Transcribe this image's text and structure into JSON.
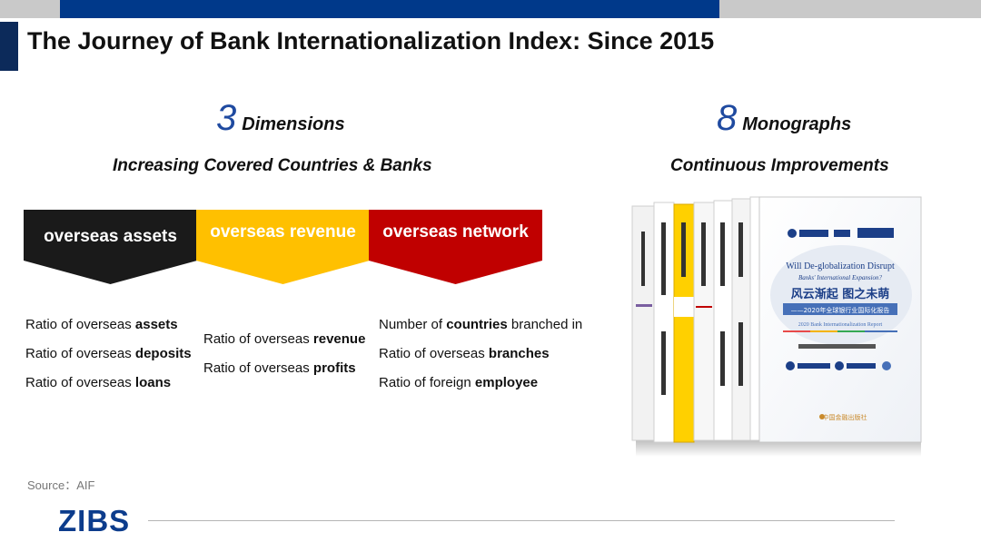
{
  "title": "The Journey of Bank Internationalization Index: Since 2015",
  "left": {
    "count": "3",
    "count_label": "Dimensions",
    "subtitle": "Increasing Covered Countries & Banks",
    "dimensions": [
      {
        "label": "overseas assets",
        "color": "#1a1a1a",
        "metrics": [
          {
            "pre": "Ratio of overseas ",
            "bold": "assets",
            "post": ""
          },
          {
            "pre": "Ratio of overseas ",
            "bold": "deposits",
            "post": ""
          },
          {
            "pre": "Ratio of overseas ",
            "bold": "loans",
            "post": ""
          }
        ]
      },
      {
        "label": "overseas revenue",
        "color": "#ffc000",
        "metrics": [
          {
            "pre": "Ratio of overseas ",
            "bold": "revenue",
            "post": ""
          },
          {
            "pre": "Ratio of overseas ",
            "bold": "profits",
            "post": ""
          }
        ]
      },
      {
        "label": "overseas network",
        "color": "#c00000",
        "metrics": [
          {
            "pre": "Number of ",
            "bold": "countries",
            "post": " branched in"
          },
          {
            "pre": "Ratio of overseas ",
            "bold": "branches",
            "post": ""
          },
          {
            "pre": "Ratio of foreign ",
            "bold": "employee",
            "post": ""
          }
        ]
      }
    ]
  },
  "right": {
    "count": "8",
    "count_label": "Monographs",
    "subtitle": "Continuous Improvements",
    "cover": {
      "title_en": "Will De-globalization Disrupt",
      "subtitle_en": "Banks' International Expansion?",
      "title_cn": "风云渐起  图之未萌",
      "subtitle_cn": "——2020年全球银行业国际化报告",
      "report_en": "2020 Bank Internationalization Report",
      "publisher_cn": "中国金融出版社"
    }
  },
  "source": "Source：AIF",
  "logo": "ZIBS",
  "colors": {
    "navy": "#00398a",
    "title_accent": "#0c2a5a",
    "grey_bar": "#c9c9c9",
    "number_blue": "#1f4aa0"
  }
}
